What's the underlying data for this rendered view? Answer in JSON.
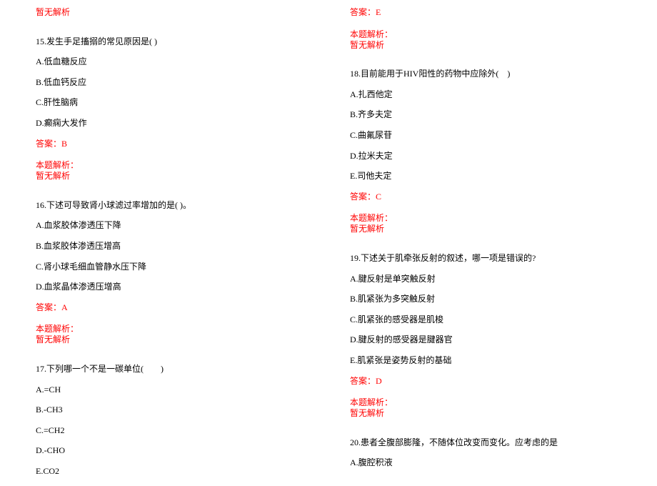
{
  "left": {
    "no_analysis_top": "暂无解析",
    "q15": {
      "title": "15.发生手足搐搦的常见原因是( )",
      "optA": "A.低血糖反应",
      "optB": "B.低血钙反应",
      "optC": "C.肝性脑病",
      "optD": "D.癫痫大发作",
      "answer": "答案：B",
      "analysis_label": "本题解析：",
      "no_analysis": "暂无解析"
    },
    "q16": {
      "title": "16.下述可导致肾小球滤过率增加的是( )。",
      "optA": "A.血浆胶体渗透压下降",
      "optB": "B.血浆胶体渗透压增高",
      "optC": "C.肾小球毛细血管静水压下降",
      "optD": "D.血浆晶体渗透压增高",
      "answer": "答案：A",
      "analysis_label": "本题解析：",
      "no_analysis": "暂无解析"
    },
    "q17": {
      "title": "17.下列哪一个不是一碳单位(　　)",
      "optA": "A.=CH",
      "optB": "B.-CH3",
      "optC": "C.=CH2",
      "optD": "D.-CHO",
      "optE": "E.CO2"
    }
  },
  "right": {
    "top_answer": "答案：E",
    "top_analysis_label": "本题解析：",
    "top_no_analysis": "暂无解析",
    "q18": {
      "title": "18.目前能用于HIV阳性的药物中应除外(　)",
      "optA": "A.扎西他定",
      "optB": "B.齐多夫定",
      "optC": "C.曲氟尿苷",
      "optD": "D.拉米夫定",
      "optE": "E.司他夫定",
      "answer": "答案：C",
      "analysis_label": "本题解析：",
      "no_analysis": "暂无解析"
    },
    "q19": {
      "title": "19.下述关于肌牵张反射的叙述，哪一项是错误的?",
      "optA": "A.腱反射是单突触反射",
      "optB": "B.肌紧张为多突触反射",
      "optC": "C.肌紧张的感受器是肌梭",
      "optD": "D.腱反射的感受器是腱器官",
      "optE": "E.肌紧张是姿势反射的基础",
      "answer": "答案：D",
      "analysis_label": "本题解析：",
      "no_analysis": "暂无解析"
    },
    "q20": {
      "title": "20.患者全腹部膨隆，不随体位改变而变化。应考虑的是",
      "optA": "A.腹腔积液"
    }
  }
}
